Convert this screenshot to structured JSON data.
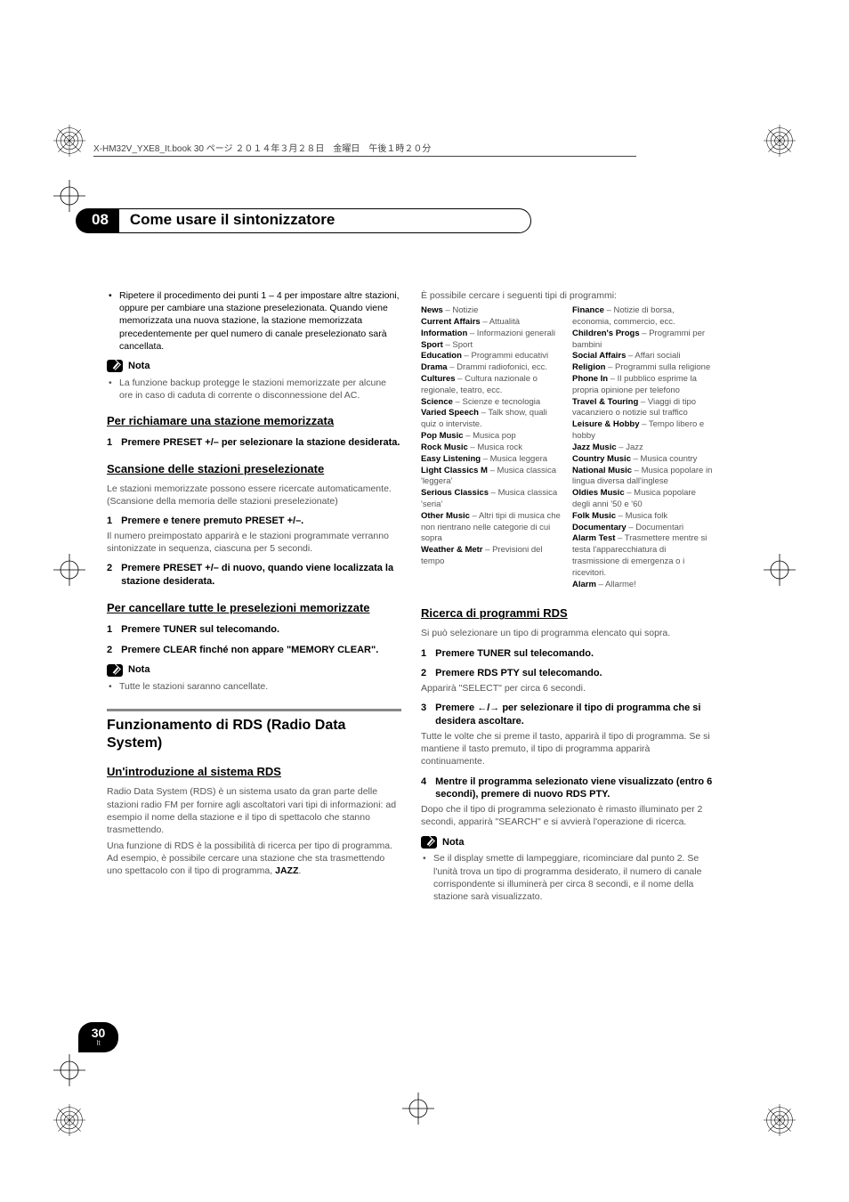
{
  "header_line": "X-HM32V_YXE8_It.book  30 ページ  ２０１４年３月２８日　金曜日　午後１時２０分",
  "chapter": {
    "num": "08",
    "title": "Come usare il sintonizzatore"
  },
  "left": {
    "repeat_bullet": "Ripetere il procedimento dei punti 1 – 4 per impostare altre stazioni, oppure per cambiare una stazione preselezionata. Quando viene memorizzata una nuova stazione, la stazione memorizzata precedentemente per quel numero di canale preselezionato sarà cancellata.",
    "nota": "Nota",
    "backup_bullet": "La funzione backup protegge le stazioni memorizzate per alcune ore in caso di caduta di corrente o disconnessione del AC.",
    "sec_recall": "Per richiamare una stazione memorizzata",
    "step1_recall": "Premere PRESET +/– per selezionare la stazione desiderata.",
    "sec_scan": "Scansione delle stazioni preselezionate",
    "scan_intro": "Le stazioni memorizzate possono essere ricercate automaticamente. (Scansione della memoria delle stazioni preselezionate)",
    "step1_scan": "Premere e tenere premuto PRESET +/–.",
    "scan_body1": "Il numero preimpostato apparirà e le stazioni programmate verranno sintonizzate in sequenza, ciascuna per 5 secondi.",
    "step2_scan": "Premere PRESET +/– di nuovo, quando viene localizzata la stazione desiderata.",
    "sec_clear": "Per cancellare tutte le preselezioni memorizzate",
    "step1_clear": "Premere TUNER sul telecomando.",
    "step2_clear": "Premere CLEAR finché non appare \"MEMORY CLEAR\".",
    "clear_note": "Tutte le stazioni saranno cancellate.",
    "rds_big": "Funzionamento di RDS (Radio Data System)",
    "sec_rds_intro": "Un'introduzione al sistema RDS",
    "rds_p1": "Radio Data System (RDS) è un sistema usato da gran parte delle stazioni radio FM per fornire agli ascoltatori vari tipi di informazioni: ad esempio il nome della stazione e il tipo di spettacolo che stanno trasmettendo.",
    "rds_p2_a": "Una funzione di RDS è la possibilità di ricerca per tipo di programma. Ad esempio, è possibile cercare una stazione che sta trasmettendo uno spettacolo con il tipo di programma, ",
    "rds_p2_b": "JAZZ",
    "rds_p2_c": "."
  },
  "right": {
    "intro": "È possibile cercare i seguenti tipi di programmi:",
    "types_left": [
      [
        "News",
        " – Notizie"
      ],
      [
        "Current Affairs",
        " – Attualità"
      ],
      [
        "Information",
        " – Informazioni generali"
      ],
      [
        "Sport",
        " – Sport"
      ],
      [
        "Education",
        " – Programmi educativi"
      ],
      [
        "Drama",
        " – Drammi radiofonici, ecc."
      ],
      [
        "Cultures",
        " – Cultura nazionale o regionale, teatro, ecc."
      ],
      [
        "Science",
        " – Scienze e tecnologia"
      ],
      [
        "Varied Speech",
        " – Talk show, quali quiz o interviste."
      ],
      [
        "Pop Music",
        " – Musica pop"
      ],
      [
        "Rock Music",
        " – Musica rock"
      ],
      [
        "Easy Listening",
        " – Musica leggera"
      ],
      [
        "Light Classics M",
        " – Musica classica 'leggera'"
      ],
      [
        "Serious Classics",
        " – Musica classica 'seria'"
      ],
      [
        "Other Music",
        " – Altri tipi di musica che non rientrano nelle categorie di cui sopra"
      ],
      [
        "Weather & Metr",
        " – Previsioni del tempo"
      ]
    ],
    "types_right": [
      [
        "Finance",
        " – Notizie di borsa, economia, commercio, ecc."
      ],
      [
        "Children's Progs",
        " – Programmi per bambini"
      ],
      [
        "Social Affairs",
        " – Affari sociali"
      ],
      [
        "Religion",
        " – Programmi sulla religione"
      ],
      [
        "Phone In",
        " – Il pubblico esprime la propria opinione per telefono"
      ],
      [
        "Travel & Touring",
        " – Viaggi di tipo vacanziero o notizie sul traffico"
      ],
      [
        "Leisure & Hobby",
        " – Tempo libero e hobby"
      ],
      [
        "Jazz Music",
        " – Jazz"
      ],
      [
        "Country Music",
        " – Musica country"
      ],
      [
        "National Music",
        " – Musica popolare in lingua diversa dall'inglese"
      ],
      [
        "Oldies Music",
        " – Musica popolare degli anni '50 e '60"
      ],
      [
        "Folk Music",
        " – Musica folk"
      ],
      [
        "Documentary",
        " – Documentari"
      ],
      [
        "Alarm Test",
        " – Trasmettere mentre si testa l'apparecchiatura di trasmissione di emergenza o i ricevitori."
      ],
      [
        "Alarm",
        " – Allarme!"
      ]
    ],
    "sec_search": "Ricerca di programmi RDS",
    "search_intro": "Si può selezionare un tipo di programma elencato qui sopra.",
    "step1": "Premere TUNER sul telecomando.",
    "step2": "Premere RDS PTY sul telecomando.",
    "step2_body": "Apparirà \"SELECT\" per circa 6 secondi.",
    "step3_a": "Premere ",
    "step3_b": " per selezionare il tipo di programma che si desidera ascoltare.",
    "step3_body": "Tutte le volte che si preme il tasto, apparirà il tipo di programma. Se si mantiene il tasto premuto, il tipo di programma apparirà continuamente.",
    "step4": "Mentre il programma selezionato viene visualizzato (entro 6 secondi), premere di nuovo RDS PTY.",
    "step4_body": "Dopo che il tipo di programma selezionato è rimasto illuminato per 2 secondi, apparirà \"SEARCH\" e si avvierà l'operazione di ricerca.",
    "nota": "Nota",
    "note_bullet": "Se il display smette di lampeggiare, ricominciare dal punto 2. Se l'unità trova un tipo di programma desiderato, il numero di canale corrispondente si illuminerà per circa 8 secondi, e il nome della stazione sarà visualizzato."
  },
  "page_num": "30",
  "page_lang": "It",
  "colors": {
    "gray_rule": "#888888",
    "text_gray": "#555555"
  }
}
